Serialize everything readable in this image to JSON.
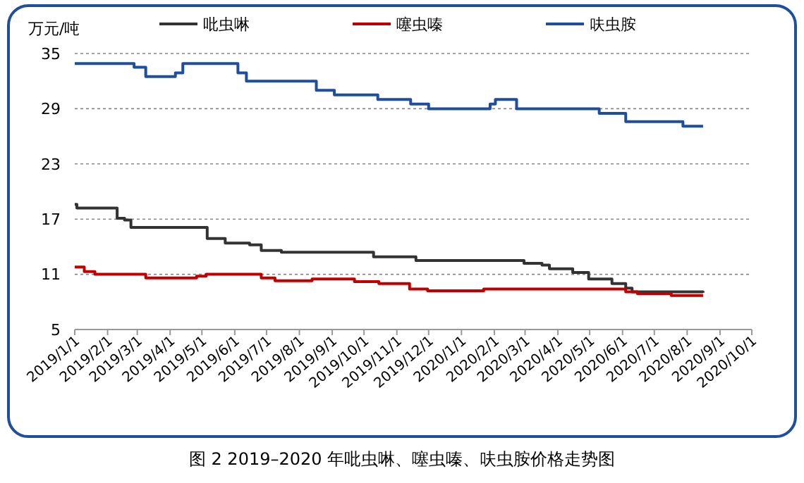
{
  "chart_data": {
    "type": "step",
    "title": "图 2 2019–2020 年吡虫啉、噻虫嗪、呋虫胺价格走势图",
    "ylabel": "万元/吨",
    "xlim": [
      "2019-01-01",
      "2020-10-01"
    ],
    "xticks": [
      {
        "value": "2019-01-01",
        "label": "2019/1/1"
      },
      {
        "value": "2019-02-01",
        "label": "2019/2/1"
      },
      {
        "value": "2019-03-01",
        "label": "2019/3/1"
      },
      {
        "value": "2019-04-01",
        "label": "2019/4/1"
      },
      {
        "value": "2019-05-01",
        "label": "2019/5/1"
      },
      {
        "value": "2019-06-01",
        "label": "2019/6/1"
      },
      {
        "value": "2019-07-01",
        "label": "2019/7/1"
      },
      {
        "value": "2019-08-01",
        "label": "2019/8/1"
      },
      {
        "value": "2019-09-01",
        "label": "2019/9/1"
      },
      {
        "value": "2019-10-01",
        "label": "2019/10/1"
      },
      {
        "value": "2019-11-01",
        "label": "2019/11/1"
      },
      {
        "value": "2019-12-01",
        "label": "2019/12/1"
      },
      {
        "value": "2020-01-01",
        "label": "2020/1/1"
      },
      {
        "value": "2020-02-01",
        "label": "2020/2/1"
      },
      {
        "value": "2020-03-01",
        "label": "2020/3/1"
      },
      {
        "value": "2020-04-01",
        "label": "2020/4/1"
      },
      {
        "value": "2020-05-01",
        "label": "2020/5/1"
      },
      {
        "value": "2020-06-01",
        "label": "2020/6/1"
      },
      {
        "value": "2020-07-01",
        "label": "2020/7/1"
      },
      {
        "value": "2020-08-01",
        "label": "2020/8/1"
      },
      {
        "value": "2020-09-01",
        "label": "2020/9/1"
      },
      {
        "value": "2020-10-01",
        "label": "2020/10/1"
      }
    ],
    "ylim": [
      5,
      35
    ],
    "yticks": [
      5,
      11,
      17,
      23,
      29,
      35
    ],
    "grid": "y",
    "legend": "top",
    "series": [
      {
        "name": "吡虫啉",
        "color": "#333333",
        "x": [
          "2019-01-01",
          "2019-01-03",
          "2019-02-10",
          "2019-02-17",
          "2019-02-23",
          "2019-05-06",
          "2019-05-23",
          "2019-06-15",
          "2019-06-26",
          "2019-07-15",
          "2019-10-10",
          "2019-11-19",
          "2020-02-29",
          "2020-03-17",
          "2020-03-24",
          "2020-04-15",
          "2020-04-30",
          "2020-05-22",
          "2020-06-04",
          "2020-06-10",
          "2020-08-16"
        ],
        "values": [
          18.6,
          18.2,
          17.1,
          16.9,
          16.1,
          14.9,
          14.4,
          14.2,
          13.6,
          13.4,
          12.9,
          12.5,
          12.2,
          12.0,
          11.6,
          11.2,
          10.5,
          10.0,
          9.5,
          9.1,
          9.0
        ]
      },
      {
        "name": "噻虫嗪",
        "color": "#c00000",
        "x": [
          "2019-01-01",
          "2019-01-10",
          "2019-01-20",
          "2019-03-09",
          "2019-04-26",
          "2019-05-05",
          "2019-06-26",
          "2019-07-09",
          "2019-08-13",
          "2019-09-22",
          "2019-10-15",
          "2019-11-13",
          "2019-11-30",
          "2020-01-22",
          "2020-06-04",
          "2020-06-15",
          "2020-07-17",
          "2020-08-16"
        ],
        "values": [
          11.8,
          11.3,
          11.0,
          10.6,
          10.8,
          11.0,
          10.6,
          10.3,
          10.5,
          10.2,
          10.0,
          9.4,
          9.2,
          9.4,
          9.1,
          8.9,
          8.7,
          8.7
        ]
      },
      {
        "name": "呋虫胺",
        "color": "#1f4e9c",
        "x": [
          "2019-01-01",
          "2019-02-26",
          "2019-03-09",
          "2019-04-06",
          "2019-04-13",
          "2019-06-04",
          "2019-06-12",
          "2019-08-17",
          "2019-09-03",
          "2019-10-14",
          "2019-11-14",
          "2019-12-01",
          "2020-01-28",
          "2020-02-02",
          "2020-02-22",
          "2020-05-10",
          "2020-06-04",
          "2020-07-28",
          "2020-08-16"
        ],
        "values": [
          33.9,
          33.5,
          32.5,
          32.9,
          33.9,
          32.9,
          32.0,
          31.0,
          30.5,
          30.0,
          29.5,
          29.0,
          29.5,
          30.0,
          29.0,
          28.5,
          27.6,
          27.1,
          27.1
        ]
      }
    ]
  }
}
